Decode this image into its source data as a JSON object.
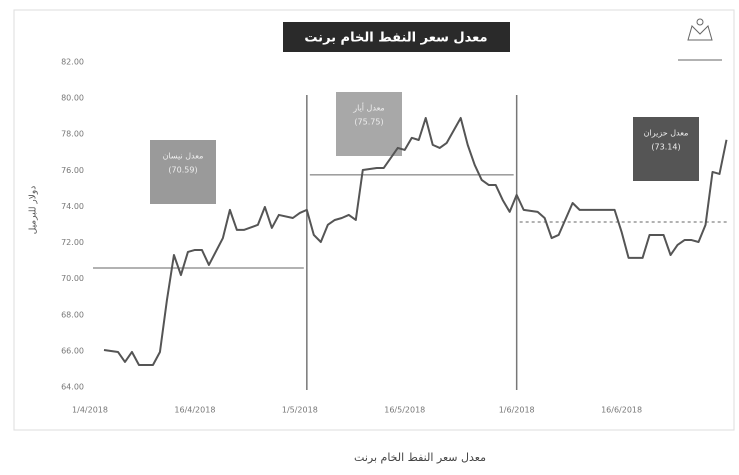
{
  "chart_data": {
    "type": "line",
    "title": "معدل سعر النفط الخام برنت",
    "caption": "معدل سعر النفط الخام برنت",
    "y_label": "دولار للبرميل",
    "x": [
      3,
      5,
      6,
      7,
      8,
      10,
      11,
      12,
      13,
      14,
      15,
      16,
      17,
      18,
      20,
      21,
      22,
      23,
      25,
      26,
      27,
      28,
      30,
      31,
      32,
      33,
      34,
      35,
      36,
      37,
      38,
      39,
      40,
      42,
      43,
      45,
      46,
      47,
      48,
      49,
      50,
      51,
      52,
      54,
      55,
      56,
      57,
      58,
      59,
      60,
      61,
      62,
      63,
      65,
      66,
      67,
      68,
      70,
      71,
      72,
      74,
      75,
      76,
      77,
      78,
      79,
      80,
      81,
      82,
      83,
      84,
      85,
      86,
      87,
      88,
      89,
      90,
      91,
      92
    ],
    "series": [
      {
        "color": "#555555",
        "values": [
          66.05,
          65.94,
          65.39,
          65.94,
          65.22,
          65.22,
          65.94,
          68.82,
          71.31,
          70.2,
          71.48,
          71.59,
          71.59,
          70.76,
          72.25,
          73.81,
          72.7,
          72.7,
          72.98,
          73.97,
          72.81,
          73.53,
          73.36,
          73.64,
          73.81,
          72.42,
          72.03,
          72.98,
          73.25,
          73.36,
          73.53,
          73.25,
          76.02,
          76.13,
          76.13,
          77.24,
          77.13,
          77.8,
          77.68,
          78.9,
          77.41,
          77.24,
          77.52,
          78.9,
          77.41,
          76.3,
          75.47,
          75.19,
          75.19,
          74.36,
          73.7,
          74.64,
          73.81,
          73.7,
          73.36,
          72.25,
          72.42,
          74.19,
          73.81,
          73.81,
          73.81,
          73.81,
          73.81,
          72.59,
          71.15,
          71.15,
          71.15,
          72.42,
          72.42,
          72.42,
          71.31,
          71.87,
          72.14,
          72.14,
          72.03,
          72.98,
          75.91,
          75.8,
          77.69
        ]
      }
    ],
    "periods": [
      {
        "name": "معدل نيسان",
        "x": [
          1,
          32
        ],
        "average": 70.59,
        "value_label": "(70.59)",
        "color": "#9a9a9a",
        "dashed": false
      },
      {
        "name": "معدل أيار",
        "x": [
          32,
          62
        ],
        "average": 75.75,
        "value_label": "(75.75)",
        "color": "#a8a8a8",
        "dashed": false
      },
      {
        "name": "معدل حزيران",
        "x": [
          62,
          92.5
        ],
        "average": 73.14,
        "value_label": "(73.14)",
        "color": "#555555",
        "dashed": true
      }
    ],
    "xlim": [
      1,
      92.5
    ],
    "xticks": [
      {
        "value": 1,
        "label": "1/4/2018"
      },
      {
        "value": 16,
        "label": "16/4/2018"
      },
      {
        "value": 31,
        "label": "1/5/2018"
      },
      {
        "value": 46,
        "label": "16/5/2018"
      },
      {
        "value": 62,
        "label": "1/6/2018"
      },
      {
        "value": 77,
        "label": "16/6/2018"
      }
    ],
    "ylim": [
      64,
      82
    ],
    "yticks": [
      {
        "value": 64,
        "label": "64.00"
      },
      {
        "value": 66,
        "label": "66.00"
      },
      {
        "value": 68,
        "label": "68.00"
      },
      {
        "value": 70,
        "label": "70.00"
      },
      {
        "value": 72,
        "label": "72.00"
      },
      {
        "value": 74,
        "label": "74.00"
      },
      {
        "value": 76,
        "label": "76.00"
      },
      {
        "value": 78,
        "label": "78.00"
      },
      {
        "value": 80,
        "label": "80.00"
      },
      {
        "value": 82,
        "label": "82.00"
      }
    ]
  }
}
